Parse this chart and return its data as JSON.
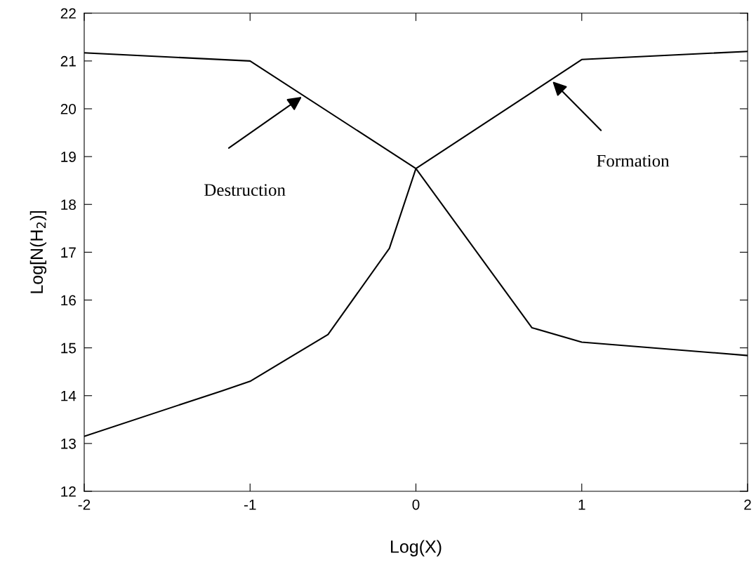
{
  "chart_data": {
    "type": "line",
    "xlabel": "Log(X)",
    "ylabel": "Log[N(H$_{2}$)]",
    "series": [
      {
        "color": "#000000",
        "x": [
          -2,
          -1,
          0,
          0.7,
          1,
          2
        ],
        "values": [
          21.17,
          21.0,
          18.75,
          15.42,
          15.12,
          14.84
        ]
      },
      {
        "color": "#000000",
        "x": [
          -2,
          -1.17,
          -1,
          -0.53,
          -0.16,
          0,
          1,
          2
        ],
        "values": [
          13.15,
          14.1,
          14.3,
          15.28,
          17.08,
          18.75,
          21.03,
          21.2
        ]
      }
    ],
    "annotations": [
      "Destruction",
      "Formation"
    ],
    "xlim": [
      -2,
      2
    ],
    "xticks": [
      -2,
      -1,
      0,
      1,
      2
    ],
    "ylim": [
      12,
      22
    ],
    "yticks": [
      12,
      13,
      14,
      15,
      16,
      17,
      18,
      19,
      20,
      21,
      22
    ],
    "grid": false,
    "marker": "none",
    "line_style": "solid"
  }
}
